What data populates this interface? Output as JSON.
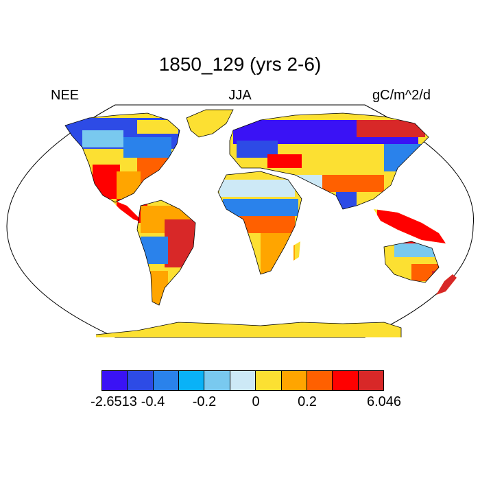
{
  "title": "1850_129 (yrs 2-6)",
  "left_label": "NEE",
  "center_label": "JJA",
  "right_label": "gC/m^2/d",
  "colorbar": {
    "colors": [
      "#3a12f5",
      "#2d4be6",
      "#2a82eb",
      "#09b2f7",
      "#79c9ef",
      "#cde9f6",
      "#fce032",
      "#ffa500",
      "#ff6000",
      "#ff0000",
      "#d82828"
    ],
    "labels": [
      {
        "text": "-2.6513"
      },
      {
        "text": "-0.4"
      },
      {
        "text": "-0.2"
      },
      {
        "text": "0"
      },
      {
        "text": "0.2"
      },
      {
        "text": "6.046"
      }
    ]
  },
  "map": {
    "projection": "robinson",
    "ocean_color": "#ffffff",
    "land_default_color": "#fce032",
    "coastline_color": "#000000"
  }
}
